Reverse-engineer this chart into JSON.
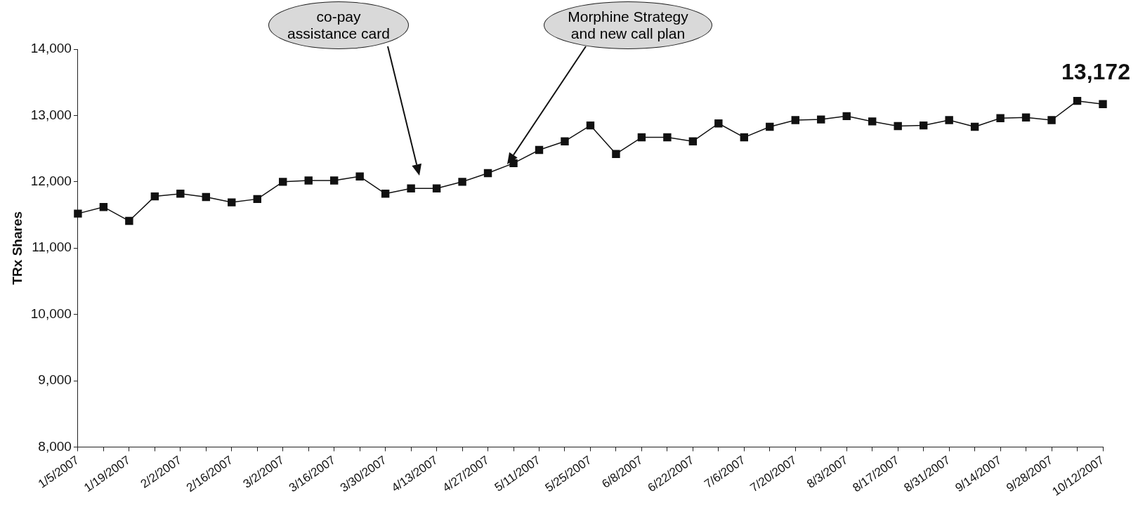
{
  "chart_data": {
    "type": "line",
    "ylabel": "TRx Shares",
    "categories": [
      "1/5/2007",
      null,
      "1/19/2007",
      null,
      "2/2/2007",
      null,
      "2/16/2007",
      null,
      "3/2/2007",
      null,
      "3/16/2007",
      null,
      "3/30/2007",
      null,
      "4/13/2007",
      null,
      "4/27/2007",
      null,
      "5/11/2007",
      null,
      "5/25/2007",
      null,
      "6/8/2007",
      null,
      "6/22/2007",
      null,
      "7/6/2007",
      null,
      "7/20/2007",
      null,
      "8/3/2007",
      null,
      "8/17/2007",
      null,
      "8/31/2007",
      null,
      "9/14/2007",
      null,
      "9/28/2007",
      null,
      "10/12/2007"
    ],
    "series": [
      {
        "color": "#111111",
        "values": [
          11520,
          11620,
          11410,
          11780,
          11820,
          11770,
          11690,
          11740,
          12000,
          12020,
          12020,
          12080,
          11820,
          11900,
          11900,
          12000,
          12130,
          12280,
          12480,
          12610,
          12850,
          12420,
          12670,
          12670,
          12610,
          12880,
          12670,
          12830,
          12930,
          12940,
          12990,
          12910,
          12840,
          12850,
          12930,
          12830,
          12960,
          12970,
          12930,
          13220,
          13172
        ],
        "value_labels": [
          null,
          null,
          null,
          null,
          null,
          null,
          null,
          null,
          null,
          null,
          null,
          null,
          null,
          null,
          null,
          null,
          null,
          null,
          null,
          null,
          null,
          null,
          null,
          null,
          null,
          null,
          null,
          null,
          null,
          null,
          null,
          null,
          null,
          null,
          null,
          null,
          null,
          null,
          null,
          null,
          "13,172"
        ]
      }
    ],
    "ylim": [
      8000,
      14000
    ],
    "yticks": [
      {
        "value": 8000,
        "label": "8,000"
      },
      {
        "value": 9000,
        "label": "9,000"
      },
      {
        "value": 10000,
        "label": "10,000"
      },
      {
        "value": 11000,
        "label": "11,000"
      },
      {
        "value": 12000,
        "label": "12,000"
      },
      {
        "value": 13000,
        "label": "13,000"
      },
      {
        "value": 14000,
        "label": "14,000"
      }
    ],
    "grid": false,
    "legend": false,
    "marker": "square",
    "line_style": "solid",
    "annotations": [
      "co-pay assistance card",
      "Morphine Strategy and new call plan"
    ]
  }
}
